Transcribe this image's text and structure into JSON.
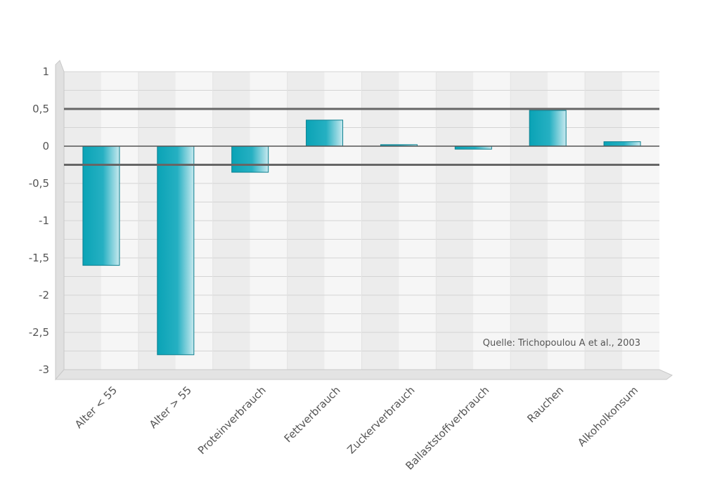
{
  "chart_data": {
    "type": "bar",
    "categories": [
      "Alter < 55",
      "Alter > 55",
      "Proteinverbrauch",
      "Fettverbrauch",
      "Zuckerverbrauch",
      "Ballaststoffverbrauch",
      "Rauchen",
      "Alkoholkonsum"
    ],
    "values": [
      -1.6,
      -2.8,
      -0.35,
      0.35,
      0.02,
      -0.04,
      0.48,
      0.06
    ],
    "ylim": [
      -3,
      1
    ],
    "yticks": [
      "1",
      "0,5",
      "0",
      "-0,5",
      "-1",
      "-1,5",
      "-2",
      "-2,5",
      "-3"
    ],
    "reference_lines": [
      0.5,
      -0.25
    ],
    "annotation": "Quelle: Trichopoulou A et al., 2003",
    "grid": true,
    "bar_color": "#0fa3b5"
  }
}
